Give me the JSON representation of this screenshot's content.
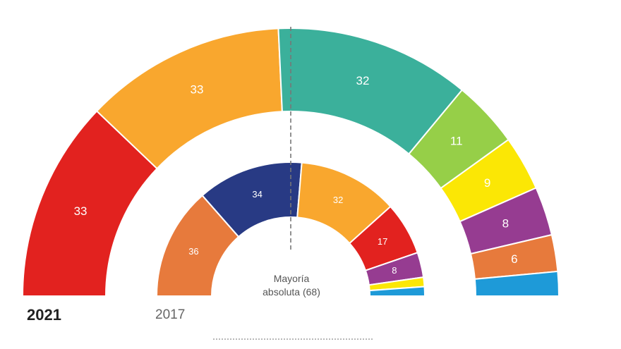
{
  "chart_data": [
    {
      "type": "pie",
      "name": "2021",
      "values": [
        33,
        33,
        32,
        11,
        9,
        8,
        6,
        4
      ],
      "labels": [
        "33",
        "33",
        "32",
        "11",
        "9",
        "8",
        "6",
        ""
      ],
      "colors": [
        "#e2221f",
        "#f9a72e",
        "#3bb09b",
        "#96cf48",
        "#fbe705",
        "#963c91",
        "#e77a3c",
        "#1e9ad8"
      ]
    },
    {
      "type": "pie",
      "name": "2017",
      "values": [
        36,
        34,
        32,
        17,
        8,
        3,
        3
      ],
      "labels": [
        "36",
        "34",
        "32",
        "17",
        "8",
        "",
        ""
      ],
      "colors": [
        "#e77a3c",
        "#283a84",
        "#f9a72e",
        "#e2221f",
        "#963c91",
        "#fbe705",
        "#1e9ad8"
      ]
    }
  ],
  "year_2021": "2021",
  "year_2017": "2017",
  "majority_line1": "Mayoría",
  "majority_line2": "absoluta (68)"
}
